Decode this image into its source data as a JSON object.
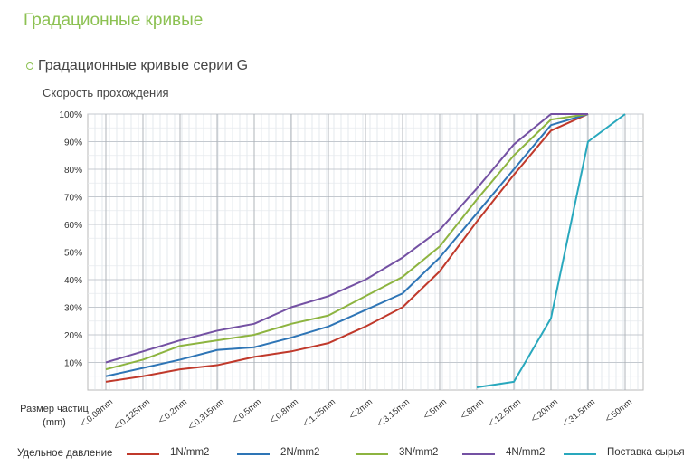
{
  "page": {
    "title": "Градационные кривые",
    "section_title": "Градационные кривые серии G"
  },
  "chart_data": {
    "type": "line",
    "ylabel": "Скорость прохождения",
    "xlabel": "Размер частиц (mm)",
    "categories": [
      "＜0.08mm",
      "＜0.125mm",
      "＜0.2mm",
      "＜0.315mm",
      "＜0.5mm",
      "＜0.8mm",
      "＜1.25mm",
      "＜2mm",
      "＜3.15mm",
      "＜5mm",
      "＜8mm",
      "＜12.5mm",
      "＜20mm",
      "＜31.5mm",
      "＜50mm"
    ],
    "y_ticks": [
      "10%",
      "20%",
      "30%",
      "40%",
      "50%",
      "60%",
      "70%",
      "80%",
      "90%",
      "100%"
    ],
    "ylim": [
      0,
      100
    ],
    "grid": true,
    "legend_title": "Удельное давление",
    "legend_position": "bottom",
    "series": [
      {
        "name": "1N/mm2",
        "color": "#c0392b",
        "values": [
          3,
          5,
          7.5,
          9,
          12,
          14,
          17,
          23,
          30,
          43,
          61,
          78,
          94,
          100,
          null
        ]
      },
      {
        "name": "2N/mm2",
        "color": "#2e75b6",
        "values": [
          5,
          8,
          11,
          14.5,
          15.5,
          19,
          23,
          29,
          35,
          48,
          64,
          80,
          96,
          100,
          null
        ]
      },
      {
        "name": "3N/mm2",
        "color": "#8db440",
        "values": [
          7.5,
          11,
          16,
          18,
          20,
          24,
          27,
          34,
          41,
          52,
          69,
          85,
          98,
          100,
          null
        ]
      },
      {
        "name": "4N/mm2",
        "color": "#7451a3",
        "values": [
          10,
          14,
          18,
          21.5,
          24,
          30,
          34,
          40,
          48,
          58,
          73,
          89,
          100,
          100,
          null
        ]
      },
      {
        "name": "Поставка сырья",
        "color": "#29a8bd",
        "values": [
          null,
          null,
          null,
          null,
          null,
          null,
          null,
          null,
          null,
          null,
          1,
          3,
          26,
          90,
          100
        ]
      }
    ]
  }
}
